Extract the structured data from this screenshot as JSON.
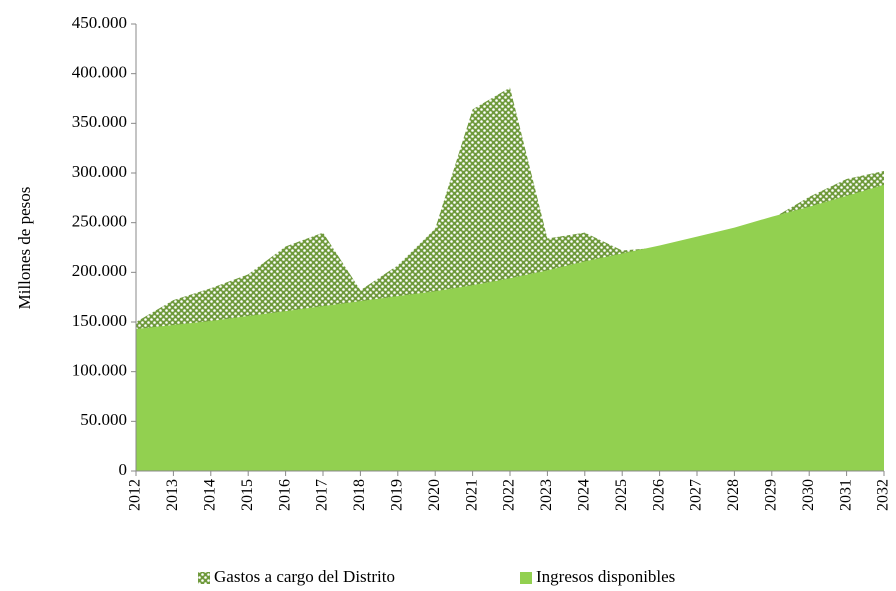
{
  "chart_data": {
    "type": "area",
    "categories": [
      "2012",
      "2013",
      "2014",
      "2015",
      "2016",
      "2017",
      "2018",
      "2019",
      "2020",
      "2021",
      "2022",
      "2023",
      "2024",
      "2025",
      "2026",
      "2027",
      "2028",
      "2029",
      "2030",
      "2031",
      "2032"
    ],
    "series": [
      {
        "name": "Gastos a cargo del Distrito",
        "color": "#6f9a3c",
        "values": [
          150000,
          172000,
          184000,
          198000,
          226000,
          240000,
          182000,
          207000,
          244000,
          364000,
          386000,
          234000,
          240000,
          222000,
          225000,
          234000,
          243000,
          254000,
          276000,
          294000,
          302000
        ]
      },
      {
        "name": "Ingresos disponibles",
        "color": "#92d050",
        "values": [
          143000,
          147000,
          151000,
          156000,
          161000,
          166000,
          171000,
          176000,
          181000,
          187000,
          194000,
          202000,
          211000,
          219000,
          227000,
          236000,
          245000,
          256000,
          266000,
          277000,
          288000
        ]
      }
    ],
    "y_label": "Millones de pesos",
    "ylim": [
      0,
      450000
    ],
    "yticks": [
      0,
      {
        "value": 50000,
        "label": "50.000"
      },
      {
        "value": 100000,
        "label": "100.000"
      },
      {
        "value": 150000,
        "label": "150.000"
      },
      {
        "value": 200000,
        "label": "200.000"
      },
      {
        "value": 250000,
        "label": "250.000"
      },
      {
        "value": 300000,
        "label": "300.000"
      },
      {
        "value": 350000,
        "label": "350.000"
      },
      {
        "value": 400000,
        "label": "400.000"
      },
      {
        "value": 450000,
        "label": "450.000"
      }
    ],
    "legend": "bottom"
  }
}
